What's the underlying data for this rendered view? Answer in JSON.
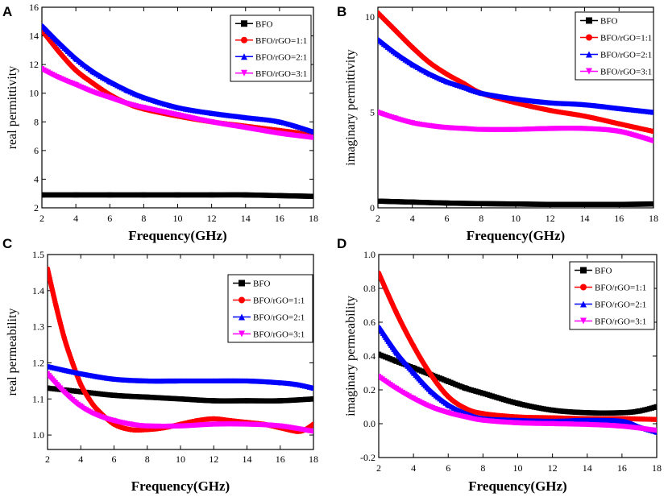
{
  "figure": {
    "background": "#ffffff"
  },
  "chart_data": [
    {
      "panel": "A",
      "type": "line",
      "xlabel": "Frequency(GHz)",
      "ylabel": "real permittivity",
      "xlim": [
        2,
        18
      ],
      "ylim": [
        2,
        16
      ],
      "xticks": [
        "2",
        "4",
        "6",
        "8",
        "10",
        "12",
        "14",
        "16",
        "18"
      ],
      "yticks": [
        "2",
        "4",
        "6",
        "8",
        "10",
        "12",
        "14",
        "16"
      ],
      "legend_position": "top-right",
      "series": [
        {
          "name": "BFO",
          "color": "#000000",
          "marker": "square",
          "x": [
            2,
            4,
            6,
            8,
            10,
            12,
            14,
            16,
            18
          ],
          "y": [
            2.9,
            2.9,
            2.9,
            2.9,
            2.9,
            2.9,
            2.9,
            2.85,
            2.8
          ]
        },
        {
          "name": "BFO/rGO=1:1",
          "color": "#ff0000",
          "marker": "circle",
          "x": [
            2,
            3,
            4,
            5,
            6,
            7,
            8,
            10,
            12,
            14,
            16,
            18
          ],
          "y": [
            14.4,
            12.9,
            11.6,
            10.7,
            9.9,
            9.3,
            8.9,
            8.4,
            8.0,
            7.7,
            7.4,
            7.1
          ]
        },
        {
          "name": "BFO/rGO=2:1",
          "color": "#0000ff",
          "marker": "triangle-up",
          "x": [
            2,
            3,
            4,
            5,
            6,
            7,
            8,
            10,
            12,
            14,
            16,
            18
          ],
          "y": [
            14.7,
            13.5,
            12.4,
            11.5,
            10.8,
            10.2,
            9.7,
            9.0,
            8.6,
            8.3,
            8.0,
            7.3
          ]
        },
        {
          "name": "BFO/rGO=3:1",
          "color": "#ff00ff",
          "marker": "triangle-down",
          "x": [
            2,
            3,
            4,
            5,
            6,
            7,
            8,
            10,
            12,
            14,
            16,
            18
          ],
          "y": [
            11.7,
            11.1,
            10.6,
            10.1,
            9.7,
            9.3,
            9.0,
            8.5,
            8.0,
            7.6,
            7.2,
            6.9
          ]
        }
      ]
    },
    {
      "panel": "B",
      "type": "line",
      "xlabel": "Frequency(GHz)",
      "ylabel": "imaginary permittivity",
      "xlim": [
        2,
        18
      ],
      "ylim": [
        0,
        10.5
      ],
      "xticks": [
        "2",
        "4",
        "6",
        "8",
        "10",
        "12",
        "14",
        "16",
        "18"
      ],
      "yticks": [
        "0",
        "5",
        "10"
      ],
      "legend_position": "top-right",
      "series": [
        {
          "name": "BFO",
          "color": "#000000",
          "marker": "square",
          "x": [
            2,
            4,
            6,
            8,
            10,
            12,
            14,
            16,
            18
          ],
          "y": [
            0.35,
            0.3,
            0.25,
            0.22,
            0.2,
            0.18,
            0.18,
            0.18,
            0.2
          ]
        },
        {
          "name": "BFO/rGO=1:1",
          "color": "#ff0000",
          "marker": "circle",
          "x": [
            2,
            3,
            4,
            5,
            6,
            7,
            8,
            10,
            12,
            14,
            16,
            18
          ],
          "y": [
            10.2,
            9.3,
            8.4,
            7.6,
            7.0,
            6.5,
            6.0,
            5.5,
            5.1,
            4.8,
            4.4,
            4.0
          ]
        },
        {
          "name": "BFO/rGO=2:1",
          "color": "#0000ff",
          "marker": "triangle-up",
          "x": [
            2,
            3,
            4,
            5,
            6,
            7,
            8,
            10,
            12,
            14,
            16,
            18
          ],
          "y": [
            8.8,
            8.1,
            7.5,
            7.0,
            6.6,
            6.3,
            6.0,
            5.7,
            5.5,
            5.4,
            5.2,
            5.0
          ]
        },
        {
          "name": "BFO/rGO=3:1",
          "color": "#ff00ff",
          "marker": "triangle-down",
          "x": [
            2,
            3,
            4,
            5,
            6,
            7,
            8,
            10,
            12,
            14,
            16,
            18
          ],
          "y": [
            5.0,
            4.7,
            4.45,
            4.3,
            4.2,
            4.15,
            4.1,
            4.1,
            4.15,
            4.15,
            4.0,
            3.5
          ]
        }
      ]
    },
    {
      "panel": "C",
      "type": "line",
      "xlabel": "Frequency(GHz)",
      "ylabel": "real permeability",
      "xlim": [
        2,
        18
      ],
      "ylim": [
        0.96,
        1.5
      ],
      "xticks": [
        "2",
        "4",
        "6",
        "8",
        "10",
        "12",
        "14",
        "16",
        "18"
      ],
      "yticks": [
        "1.0",
        "1.1",
        "1.2",
        "1.3",
        "1.4",
        "1.5"
      ],
      "legend_position": "top-right",
      "series": [
        {
          "name": "BFO",
          "color": "#000000",
          "marker": "square",
          "x": [
            2,
            4,
            6,
            8,
            10,
            12,
            14,
            16,
            18
          ],
          "y": [
            1.13,
            1.12,
            1.11,
            1.105,
            1.1,
            1.095,
            1.095,
            1.095,
            1.1
          ]
        },
        {
          "name": "BFO/rGO=1:1",
          "color": "#ff0000",
          "marker": "circle",
          "x": [
            2,
            2.5,
            3,
            3.5,
            4,
            4.5,
            5,
            6,
            7,
            8,
            9,
            10,
            11,
            12,
            13,
            14,
            15,
            16,
            17,
            17.5,
            18
          ],
          "y": [
            1.46,
            1.36,
            1.27,
            1.2,
            1.14,
            1.1,
            1.07,
            1.03,
            1.015,
            1.015,
            1.02,
            1.03,
            1.04,
            1.045,
            1.04,
            1.035,
            1.03,
            1.02,
            1.01,
            1.015,
            1.03
          ]
        },
        {
          "name": "BFO/rGO=2:1",
          "color": "#0000ff",
          "marker": "triangle-up",
          "x": [
            2,
            4,
            6,
            8,
            10,
            12,
            14,
            16,
            17,
            18
          ],
          "y": [
            1.19,
            1.17,
            1.155,
            1.15,
            1.15,
            1.15,
            1.15,
            1.145,
            1.14,
            1.13
          ]
        },
        {
          "name": "BFO/rGO=3:1",
          "color": "#ff00ff",
          "marker": "triangle-down",
          "x": [
            2,
            3,
            4,
            5,
            6,
            7,
            8,
            10,
            12,
            14,
            16,
            18
          ],
          "y": [
            1.17,
            1.12,
            1.08,
            1.055,
            1.04,
            1.03,
            1.025,
            1.025,
            1.03,
            1.03,
            1.025,
            1.01
          ]
        }
      ]
    },
    {
      "panel": "D",
      "type": "line",
      "xlabel": "Frequency(GHz)",
      "ylabel": "imaginary permeability",
      "xlim": [
        2,
        18
      ],
      "ylim": [
        -0.2,
        1.0
      ],
      "xticks": [
        "2",
        "4",
        "6",
        "8",
        "10",
        "12",
        "14",
        "16",
        "18"
      ],
      "yticks": [
        "-0.2",
        "0.0",
        "0.2",
        "0.4",
        "0.6",
        "0.8",
        "1.0"
      ],
      "legend_position": "top-right",
      "series": [
        {
          "name": "BFO",
          "color": "#000000",
          "marker": "square",
          "x": [
            2,
            3,
            4,
            5,
            6,
            7,
            8,
            10,
            12,
            14,
            16,
            17,
            18
          ],
          "y": [
            0.41,
            0.37,
            0.33,
            0.29,
            0.25,
            0.21,
            0.18,
            0.12,
            0.08,
            0.065,
            0.065,
            0.075,
            0.1
          ]
        },
        {
          "name": "BFO/rGO=1:1",
          "color": "#ff0000",
          "marker": "circle",
          "x": [
            2,
            3,
            4,
            5,
            6,
            7,
            8,
            10,
            12,
            14,
            16,
            18
          ],
          "y": [
            0.89,
            0.66,
            0.46,
            0.29,
            0.16,
            0.09,
            0.06,
            0.04,
            0.035,
            0.03,
            0.03,
            0.025
          ]
        },
        {
          "name": "BFO/rGO=2:1",
          "color": "#0000ff",
          "marker": "triangle-up",
          "x": [
            2,
            3,
            4,
            5,
            6,
            7,
            8,
            10,
            12,
            14,
            16,
            17,
            18
          ],
          "y": [
            0.57,
            0.42,
            0.3,
            0.19,
            0.11,
            0.06,
            0.03,
            0.02,
            0.015,
            0.02,
            0.015,
            -0.02,
            -0.05
          ]
        },
        {
          "name": "BFO/rGO=3:1",
          "color": "#ff00ff",
          "marker": "triangle-down",
          "x": [
            2,
            3,
            4,
            5,
            6,
            7,
            8,
            10,
            12,
            14,
            16,
            18
          ],
          "y": [
            0.28,
            0.21,
            0.15,
            0.1,
            0.065,
            0.04,
            0.02,
            0.005,
            0.0,
            -0.005,
            -0.015,
            -0.04
          ]
        }
      ]
    }
  ]
}
